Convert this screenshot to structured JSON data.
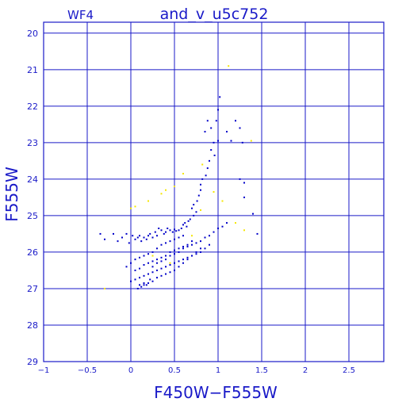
{
  "colors": {
    "frame": "#1a1ac8",
    "points_primary": "#0000c8",
    "points_secondary": "#f5e600",
    "background": "#ffffff"
  },
  "chart_data": {
    "type": "scatter",
    "title": "and_v_u5c752",
    "subtitle": "WF4",
    "xlabel": "F450W−F555W",
    "ylabel": "F555W",
    "xlim": [
      -1,
      2.9
    ],
    "ylim": [
      29,
      19.7
    ],
    "y_inverted": true,
    "grid": true,
    "xticks": [
      -1,
      -0.5,
      0,
      0.5,
      1,
      1.5,
      2,
      2.5
    ],
    "xtick_labels": [
      "−1",
      "−0.5",
      "0",
      "0.5",
      "1",
      "1.5",
      "2",
      "2.5"
    ],
    "yticks": [
      20,
      21,
      22,
      23,
      24,
      25,
      26,
      27,
      28,
      29
    ],
    "ytick_labels": [
      "20",
      "21",
      "22",
      "23",
      "24",
      "25",
      "26",
      "27",
      "28",
      "29"
    ],
    "series": [
      {
        "color": "#0000c8",
        "x": [
          1.02,
          1.0,
          0.98,
          0.88,
          0.92,
          0.85,
          1.2,
          1.1,
          1.15,
          1.0,
          0.95,
          0.92,
          0.96,
          0.9,
          0.88,
          0.86,
          0.82,
          0.8,
          1.28,
          1.25,
          1.3,
          1.4,
          1.45,
          0.8,
          0.78,
          0.76,
          0.72,
          0.7,
          0.75,
          0.72,
          0.68,
          0.66,
          0.62,
          0.6,
          0.64,
          0.58,
          0.55,
          0.52,
          0.5,
          0.48,
          0.45,
          0.42,
          0.4,
          0.38,
          0.35,
          0.32,
          0.3,
          0.28,
          0.25,
          0.22,
          0.2,
          0.18,
          0.15,
          0.12,
          0.1,
          0.08,
          0.05,
          0.02,
          -0.02,
          -0.05,
          -0.1,
          -0.15,
          -0.2,
          -0.3,
          -0.35,
          0.6,
          0.55,
          0.5,
          0.45,
          0.4,
          0.35,
          0.3,
          0.25,
          0.2,
          0.15,
          0.1,
          0.05,
          0.0,
          -0.05,
          0.7,
          0.65,
          0.6,
          0.55,
          0.5,
          0.45,
          0.4,
          0.35,
          0.3,
          0.25,
          0.2,
          0.15,
          0.1,
          0.05,
          0.8,
          0.75,
          0.7,
          0.65,
          0.6,
          0.55,
          0.5,
          0.45,
          0.4,
          0.35,
          0.3,
          0.25,
          0.2,
          0.15,
          0.1,
          0.05,
          0.0,
          0.9,
          0.85,
          0.8,
          0.75,
          0.7,
          0.65,
          0.6,
          0.55,
          0.5,
          0.45,
          0.4,
          0.35,
          0.3,
          0.25,
          0.2,
          0.15,
          1.1,
          1.05,
          1.0,
          0.95,
          0.9,
          0.85,
          0.8,
          0.75,
          0.7,
          0.65,
          0.6,
          0.55,
          0.5,
          0.45,
          0.4,
          0.35,
          0.3,
          0.25,
          1.25,
          1.3,
          0.1,
          0.12,
          0.08,
          0.15,
          0.18,
          0.22
        ],
        "y": [
          21.75,
          22.1,
          22.4,
          22.4,
          22.6,
          22.7,
          22.4,
          22.7,
          22.95,
          22.95,
          23.0,
          23.2,
          23.35,
          23.5,
          23.7,
          23.9,
          24.0,
          24.15,
          23.0,
          22.6,
          24.1,
          24.95,
          25.5,
          24.3,
          24.45,
          24.6,
          24.7,
          24.8,
          24.9,
          25.0,
          25.1,
          25.15,
          25.2,
          25.25,
          25.3,
          25.35,
          25.4,
          25.42,
          25.38,
          25.45,
          25.4,
          25.35,
          25.45,
          25.5,
          25.4,
          25.35,
          25.55,
          25.45,
          25.6,
          25.5,
          25.55,
          25.65,
          25.6,
          25.7,
          25.55,
          25.6,
          25.65,
          25.55,
          25.75,
          25.5,
          25.6,
          25.7,
          25.5,
          25.65,
          25.5,
          25.55,
          25.6,
          25.65,
          25.7,
          25.75,
          25.8,
          25.9,
          26.0,
          26.05,
          26.1,
          26.15,
          26.2,
          26.3,
          26.4,
          25.7,
          25.8,
          25.85,
          25.9,
          25.95,
          26.0,
          26.1,
          26.15,
          26.2,
          26.25,
          26.3,
          26.35,
          26.45,
          26.5,
          25.9,
          26.0,
          26.1,
          26.15,
          26.2,
          26.25,
          26.3,
          26.35,
          26.4,
          26.45,
          26.5,
          26.55,
          26.6,
          26.65,
          26.7,
          26.75,
          26.8,
          25.8,
          25.9,
          26.0,
          26.05,
          26.1,
          26.2,
          26.3,
          26.4,
          26.5,
          26.55,
          26.6,
          26.65,
          26.7,
          26.8,
          26.85,
          26.9,
          25.2,
          25.3,
          25.35,
          25.45,
          25.55,
          25.6,
          25.7,
          25.75,
          25.8,
          25.85,
          25.9,
          26.0,
          26.05,
          26.1,
          26.2,
          26.25,
          26.3,
          26.4,
          24.0,
          24.5,
          26.9,
          26.95,
          27.0,
          26.85,
          26.9,
          26.75
        ]
      },
      {
        "color": "#f5e600",
        "x": [
          1.12,
          1.38,
          0.82,
          0.6,
          0.5,
          0.4,
          0.35,
          0.2,
          0.05,
          0.0,
          -0.3,
          0.95,
          1.05,
          1.2,
          1.3,
          0.7,
          0.25,
          0.45,
          0.8
        ],
        "y": [
          20.9,
          22.95,
          23.6,
          23.85,
          24.2,
          24.3,
          24.4,
          24.6,
          24.75,
          24.8,
          27.0,
          24.35,
          24.6,
          25.2,
          25.4,
          25.55,
          26.1,
          26.3,
          24.85
        ]
      }
    ]
  }
}
